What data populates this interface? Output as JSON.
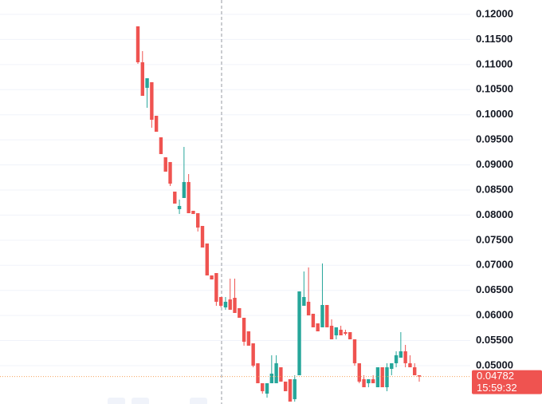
{
  "chart_data": {
    "type": "candlestick",
    "up_color": "#26a69a",
    "down_color": "#ef5350",
    "ylim": [
      0.04236,
      0.12286
    ],
    "yticks": [
      {
        "value": 0.05,
        "label": "0.05000"
      },
      {
        "value": 0.055,
        "label": "0.05500"
      },
      {
        "value": 0.06,
        "label": "0.06000"
      },
      {
        "value": 0.065,
        "label": "0.06500"
      },
      {
        "value": 0.07,
        "label": "0.07000"
      },
      {
        "value": 0.075,
        "label": "0.07500"
      },
      {
        "value": 0.08,
        "label": "0.08000"
      },
      {
        "value": 0.085,
        "label": "0.08500"
      },
      {
        "value": 0.09,
        "label": "0.09000"
      },
      {
        "value": 0.095,
        "label": "0.09500"
      },
      {
        "value": 0.1,
        "label": "0.10000"
      },
      {
        "value": 0.105,
        "label": "0.10500"
      },
      {
        "value": 0.11,
        "label": "0.11000"
      },
      {
        "value": 0.115,
        "label": "0.11500"
      },
      {
        "value": 0.12,
        "label": "0.12000"
      }
    ],
    "grid": true,
    "open": [
      0.11761,
      0.11045,
      0.10536,
      0.10648,
      0.09979,
      0.0955,
      0.09152,
      0.09057,
      0.08468,
      0.08118,
      0.08341,
      0.08659,
      0.08086,
      0.08038,
      0.07784,
      0.07434,
      0.06798,
      0.06845,
      0.06368,
      0.06161,
      0.0632,
      0.06352,
      0.06146,
      0.05954,
      0.05684,
      0.05445,
      0.05048,
      0.0465,
      0.04443,
      0.0465,
      0.0465,
      0.04968,
      0.04682,
      0.0473,
      0.04332,
      0.04809,
      0.06193,
      0.06273,
      0.06034,
      0.05843,
      0.05764,
      0.06209,
      0.05795,
      0.05604,
      0.05716,
      0.05668,
      0.05668,
      0.05525,
      0.05048,
      0.0473,
      0.0465,
      0.0473,
      0.0457,
      0.04968,
      0.0457,
      0.04936,
      0.05048,
      0.05159,
      0.05286,
      0.05048,
      0.04968,
      0.04809
    ],
    "high": [
      0.11761,
      0.11268,
      0.10727,
      0.10648,
      0.09979,
      0.0955,
      0.09152,
      0.09057,
      0.08468,
      0.08309,
      0.09359,
      0.08818,
      0.08086,
      0.08038,
      0.07784,
      0.07434,
      0.06798,
      0.06845,
      0.06368,
      0.06368,
      0.06734,
      0.06734,
      0.06146,
      0.05954,
      0.05684,
      0.05445,
      0.05048,
      0.0465,
      0.0465,
      0.05207,
      0.05207,
      0.04968,
      0.04682,
      0.0473,
      0.04809,
      0.0648,
      0.06877,
      0.06957,
      0.06034,
      0.05843,
      0.07036,
      0.06209,
      0.05923,
      0.05764,
      0.05795,
      0.05716,
      0.05668,
      0.05525,
      0.05048,
      0.04809,
      0.0473,
      0.04809,
      0.04968,
      0.04968,
      0.05048,
      0.05048,
      0.05286,
      0.05668,
      0.05414,
      0.05207,
      0.05048,
      0.04809
    ],
    "low": [
      0.11013,
      0.10377,
      0.10138,
      0.09741,
      0.09661,
      0.09216,
      0.08866,
      0.0858,
      0.08229,
      0.08022,
      0.08341,
      0.08038,
      0.08022,
      0.07673,
      0.07354,
      0.06798,
      0.06718,
      0.06193,
      0.06161,
      0.06114,
      0.06114,
      0.0605,
      0.05954,
      0.05398,
      0.05398,
      0.04968,
      0.0465,
      0.04443,
      0.04363,
      0.0465,
      0.0465,
      0.04682,
      0.04491,
      0.04284,
      0.04284,
      0.04809,
      0.06193,
      0.06002,
      0.05764,
      0.05684,
      0.05764,
      0.05764,
      0.05525,
      0.05525,
      0.05604,
      0.05604,
      0.05525,
      0.05,
      0.0465,
      0.0457,
      0.0457,
      0.0465,
      0.0457,
      0.0457,
      0.04491,
      0.04809,
      0.04968,
      0.05159,
      0.04968,
      0.04968,
      0.04809,
      0.04682
    ],
    "close": [
      0.11045,
      0.10377,
      0.10727,
      0.099,
      0.09661,
      0.09216,
      0.08866,
      0.08627,
      0.08229,
      0.08182,
      0.08659,
      0.08038,
      0.08022,
      0.07752,
      0.07354,
      0.06798,
      0.06718,
      0.06273,
      0.06193,
      0.06273,
      0.06114,
      0.0605,
      0.05954,
      0.05477,
      0.05398,
      0.05,
      0.0465,
      0.04491,
      0.0465,
      0.04841,
      0.05048,
      0.04682,
      0.04491,
      0.04284,
      0.0473,
      0.0648,
      0.06368,
      0.06002,
      0.05764,
      0.05684,
      0.06209,
      0.05764,
      0.05525,
      0.05764,
      0.05604,
      0.05636,
      0.05525,
      0.05048,
      0.04682,
      0.0457,
      0.0473,
      0.0465,
      0.04968,
      0.0457,
      0.04968,
      0.05048,
      0.05207,
      0.05286,
      0.05048,
      0.04968,
      0.04809,
      0.04782
    ],
    "last_price": 0.04782,
    "countdown": "15:59:32"
  }
}
